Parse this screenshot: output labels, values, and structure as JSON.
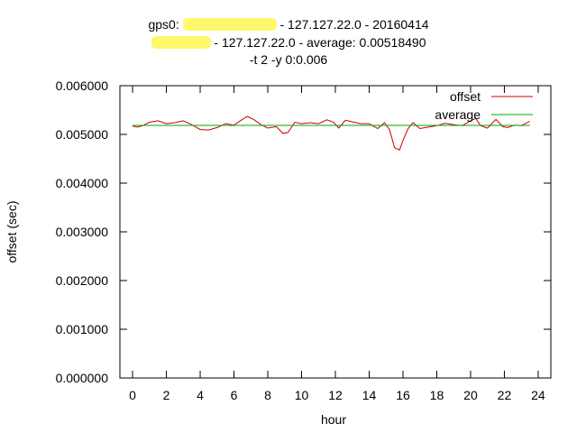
{
  "chart_data": {
    "type": "line",
    "title_lines": [
      {
        "prefix": "gps0: ",
        "suffix": " - 127.127.22.0 - 20160414"
      },
      {
        "prefix": "",
        "suffix": " - 127.127.22.0 - average: 0.00518490"
      },
      {
        "prefix": "",
        "suffix": "-t 2 -y 0:0.006"
      }
    ],
    "xlabel": "hour",
    "ylabel": "offset (sec)",
    "xlim": [
      -0.75,
      24.75
    ],
    "ylim": [
      0,
      0.006
    ],
    "xticks": [
      0,
      2,
      4,
      6,
      8,
      10,
      12,
      14,
      16,
      18,
      20,
      22,
      24
    ],
    "xtick_labels": [
      "0",
      "2",
      "4",
      "6",
      "8",
      "10",
      "12",
      "14",
      "16",
      "18",
      "20",
      "22",
      "24"
    ],
    "yticks": [
      0,
      0.001,
      0.002,
      0.003,
      0.004,
      0.005,
      0.006
    ],
    "ytick_labels": [
      "0.000000",
      "0.001000",
      "0.002000",
      "0.003000",
      "0.004000",
      "0.005000",
      "0.006000"
    ],
    "legend_position": "top-right",
    "series": [
      {
        "name": "offset",
        "color": "#cc0000",
        "x": [
          0,
          0.3,
          0.6,
          1.0,
          1.5,
          2.0,
          2.5,
          3.0,
          3.5,
          4.0,
          4.5,
          5.0,
          5.5,
          6.0,
          6.5,
          6.8,
          7.2,
          7.6,
          8.0,
          8.5,
          8.9,
          9.2,
          9.6,
          10.0,
          10.5,
          11.0,
          11.5,
          11.9,
          12.2,
          12.6,
          13.0,
          13.5,
          14.0,
          14.5,
          14.9,
          15.2,
          15.5,
          15.8,
          16.0,
          16.3,
          16.6,
          17.0,
          17.5,
          18.0,
          18.5,
          19.0,
          19.5,
          20.0,
          20.3,
          20.6,
          21.0,
          21.5,
          21.9,
          22.2,
          22.6,
          23.0,
          23.5
        ],
        "values": [
          0.00517,
          0.00515,
          0.00518,
          0.00525,
          0.00528,
          0.00522,
          0.00524,
          0.00528,
          0.0052,
          0.0051,
          0.00509,
          0.00514,
          0.00522,
          0.00519,
          0.00531,
          0.00537,
          0.0053,
          0.0052,
          0.00513,
          0.00516,
          0.00502,
          0.00504,
          0.00525,
          0.00522,
          0.00524,
          0.00522,
          0.0053,
          0.00525,
          0.00513,
          0.00529,
          0.00526,
          0.00522,
          0.00522,
          0.00512,
          0.00524,
          0.0051,
          0.00473,
          0.00468,
          0.00488,
          0.00512,
          0.00524,
          0.00512,
          0.00515,
          0.00518,
          0.00523,
          0.0052,
          0.00518,
          0.00528,
          0.00533,
          0.00518,
          0.00513,
          0.00531,
          0.00516,
          0.00514,
          0.00519,
          0.00518,
          0.00527
        ]
      },
      {
        "name": "average",
        "color": "#00aa00",
        "x": [
          0,
          23.5
        ],
        "values": [
          0.0051849,
          0.0051849
        ]
      }
    ]
  }
}
